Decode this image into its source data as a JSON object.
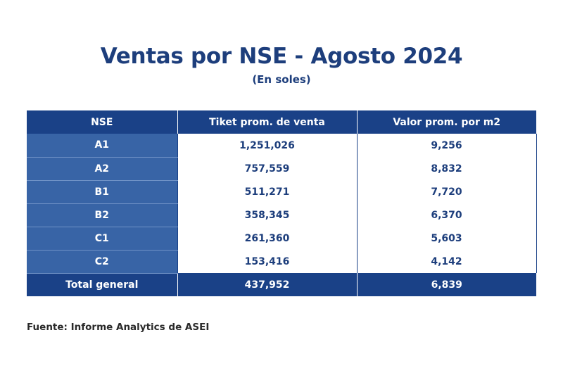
{
  "title": "Ventas por NSE - Agosto 2024",
  "subtitle": "(En soles)",
  "table": {
    "headers": [
      "NSE",
      "Tiket prom. de venta",
      "Valor prom. por m2"
    ],
    "rows": [
      {
        "nse": "A1",
        "ticket": "1,251,026",
        "valor": "9,256"
      },
      {
        "nse": "A2",
        "ticket": "757,559",
        "valor": "8,832"
      },
      {
        "nse": "B1",
        "ticket": "511,271",
        "valor": "7,720"
      },
      {
        "nse": "B2",
        "ticket": "358,345",
        "valor": "6,370"
      },
      {
        "nse": "C1",
        "ticket": "261,360",
        "valor": "5,603"
      },
      {
        "nse": "C2",
        "ticket": "153,416",
        "valor": "4,142"
      }
    ],
    "total": {
      "label": "Total general",
      "ticket": "437,952",
      "valor": "6,839"
    }
  },
  "source": "Fuente: Informe Analytics de ASEI",
  "colors": {
    "header_bg": "#1a4187",
    "row_label_bg": "#3864a6",
    "text_dark_blue": "#1d3e7c"
  }
}
